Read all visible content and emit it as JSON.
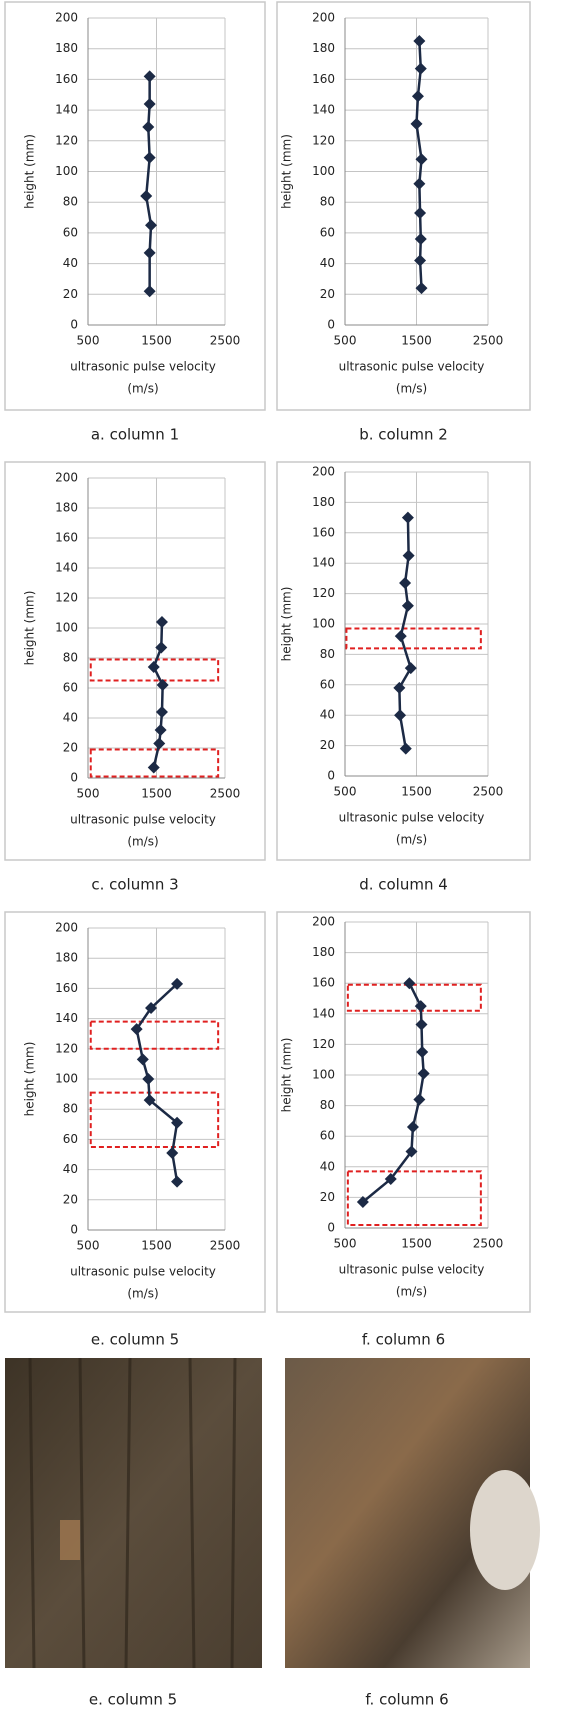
{
  "chart_data": [
    {
      "type": "line",
      "caption": "a. column 1",
      "ylabel": "height (mm)",
      "xlabel": [
        "ultrasonic pulse velocity",
        "(m/s)"
      ],
      "color": "#1c2a45",
      "grid": true,
      "x": [
        1400,
        1400,
        1420,
        1350,
        1400,
        1380,
        1400,
        1400
      ],
      "y": [
        22,
        47,
        65,
        84,
        109,
        129,
        144,
        162
      ],
      "xlim": [
        500,
        2500
      ],
      "ylim": [
        0,
        200
      ],
      "xticks": [
        500,
        1500,
        2500
      ],
      "yticks": [
        0,
        20,
        40,
        60,
        80,
        100,
        120,
        140,
        160,
        180,
        200
      ],
      "boxes": []
    },
    {
      "type": "line",
      "caption": "b. column 2",
      "ylabel": "height (mm)",
      "xlabel": [
        "ultrasonic pulse velocity",
        "(m/s)"
      ],
      "color": "#1c2a45",
      "grid": true,
      "x": [
        1570,
        1550,
        1560,
        1550,
        1540,
        1570,
        1500,
        1520,
        1560,
        1540
      ],
      "y": [
        24,
        42,
        56,
        73,
        92,
        108,
        131,
        149,
        167,
        185
      ],
      "xlim": [
        500,
        2500
      ],
      "ylim": [
        0,
        200
      ],
      "xticks": [
        500,
        1500,
        2500
      ],
      "yticks": [
        0,
        20,
        40,
        60,
        80,
        100,
        120,
        140,
        160,
        180,
        200
      ],
      "boxes": []
    },
    {
      "type": "line",
      "caption": "c. column 3",
      "ylabel": "height (mm)",
      "xlabel": [
        "ultrasonic pulse velocity",
        "(m/s)"
      ],
      "color": "#1c2a45",
      "grid": true,
      "x": [
        1460,
        1540,
        1560,
        1580,
        1590,
        1460,
        1570,
        1580
      ],
      "y": [
        7,
        23,
        32,
        44,
        62,
        74,
        87,
        104
      ],
      "xlim": [
        500,
        2500
      ],
      "ylim": [
        0,
        200
      ],
      "xticks": [
        500,
        1500,
        2500
      ],
      "yticks": [
        0,
        20,
        40,
        60,
        80,
        100,
        120,
        140,
        160,
        180,
        200
      ],
      "boxes": [
        {
          "x": [
            540,
            2400
          ],
          "y": [
            65,
            79
          ]
        },
        {
          "x": [
            540,
            2400
          ],
          "y": [
            1,
            19
          ]
        }
      ]
    },
    {
      "type": "line",
      "caption": "d. column 4",
      "ylabel": "height (mm)",
      "xlabel": [
        "ultrasonic pulse velocity",
        "(m/s)"
      ],
      "color": "#1c2a45",
      "grid": true,
      "x": [
        1350,
        1270,
        1260,
        1420,
        1280,
        1380,
        1340,
        1390,
        1380
      ],
      "y": [
        18,
        40,
        58,
        71,
        92,
        112,
        127,
        145,
        170
      ],
      "xlim": [
        500,
        2500
      ],
      "ylim": [
        0,
        200
      ],
      "xticks": [
        500,
        1500,
        2500
      ],
      "yticks": [
        0,
        20,
        40,
        60,
        80,
        100,
        120,
        140,
        160,
        180,
        200
      ],
      "boxes": [
        {
          "x": [
            520,
            2400
          ],
          "y": [
            84,
            97
          ]
        }
      ]
    },
    {
      "type": "line",
      "caption": "e. column 5",
      "ylabel": "height (mm)",
      "xlabel": [
        "ultrasonic pulse velocity",
        "(m/s)"
      ],
      "color": "#1c2a45",
      "grid": true,
      "x": [
        1800,
        1730,
        1800,
        1400,
        1380,
        1300,
        1210,
        1420,
        1800
      ],
      "y": [
        32,
        51,
        71,
        86,
        100,
        113,
        133,
        147,
        163
      ],
      "xlim": [
        500,
        2500
      ],
      "ylim": [
        0,
        200
      ],
      "xticks": [
        500,
        1500,
        2500
      ],
      "yticks": [
        0,
        20,
        40,
        60,
        80,
        100,
        120,
        140,
        160,
        180,
        200
      ],
      "boxes": [
        {
          "x": [
            540,
            2400
          ],
          "y": [
            120,
            138
          ]
        },
        {
          "x": [
            540,
            2400
          ],
          "y": [
            55,
            91
          ]
        }
      ]
    },
    {
      "type": "line",
      "caption": "f. column 6",
      "ylabel": "height (mm)",
      "xlabel": [
        "ultrasonic pulse velocity",
        "(m/s)"
      ],
      "color": "#1c2a45",
      "grid": true,
      "x": [
        750,
        1140,
        1430,
        1450,
        1540,
        1600,
        1580,
        1570,
        1560,
        1400
      ],
      "y": [
        17,
        32,
        50,
        66,
        84,
        101,
        115,
        133,
        145,
        160
      ],
      "xlim": [
        500,
        2500
      ],
      "ylim": [
        0,
        200
      ],
      "xticks": [
        500,
        1500,
        2500
      ],
      "yticks": [
        0,
        20,
        40,
        60,
        80,
        100,
        120,
        140,
        160,
        180,
        200
      ],
      "boxes": [
        {
          "x": [
            540,
            2400
          ],
          "y": [
            142,
            159
          ]
        },
        {
          "x": [
            540,
            2400
          ],
          "y": [
            2,
            37
          ]
        }
      ]
    }
  ],
  "photos": [
    {
      "caption": "e. column 5"
    },
    {
      "caption": "f. column 6"
    }
  ]
}
